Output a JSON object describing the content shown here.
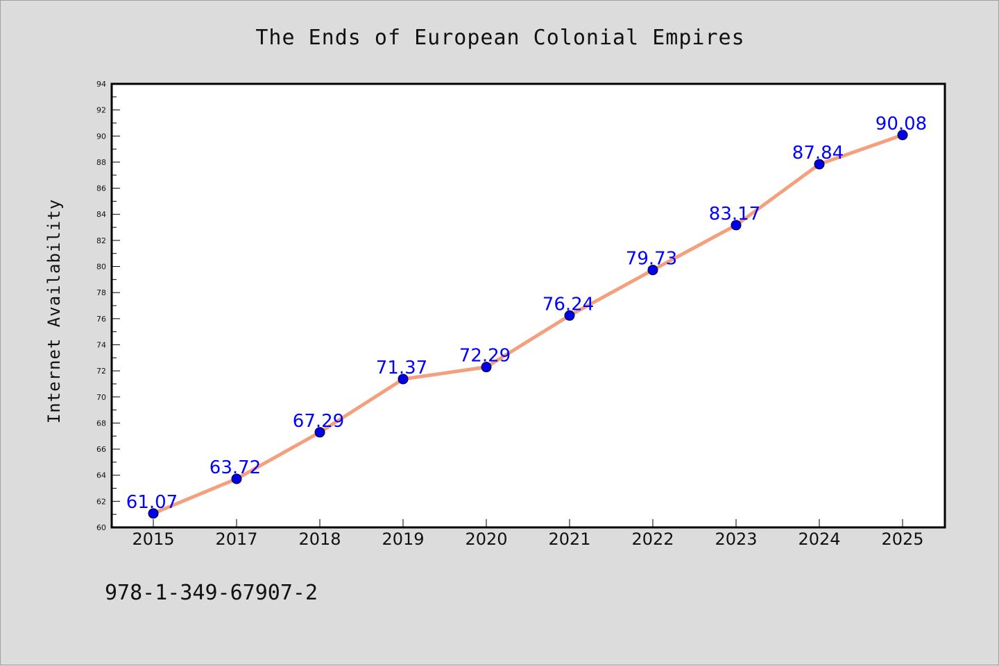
{
  "chart_data": {
    "type": "line",
    "title": "The Ends of European Colonial Empires",
    "xlabel": "",
    "ylabel": "Internet Availability",
    "categories": [
      "2015",
      "2017",
      "2018",
      "2019",
      "2020",
      "2021",
      "2022",
      "2023",
      "2024",
      "2025"
    ],
    "series": [
      {
        "values": [
          61.07,
          63.72,
          67.29,
          71.37,
          72.29,
          76.24,
          79.73,
          83.17,
          87.84,
          90.08
        ],
        "data_labels": [
          "61.07",
          "63.72",
          "67.29",
          "71.37",
          "72.29",
          "76.24",
          "79.73",
          "83.17",
          "87.84",
          "90.08"
        ],
        "line_color": "#f4a07e",
        "marker_color": "#0000ee"
      }
    ],
    "ylim": [
      60,
      94
    ],
    "y_ticks": [
      "60",
      "62",
      "64",
      "66",
      "68",
      "70",
      "72",
      "74",
      "76",
      "78",
      "80",
      "82",
      "84",
      "86",
      "88",
      "90",
      "92",
      "94"
    ],
    "grid": false,
    "legend": "none"
  },
  "footer": {
    "code": "978-1-349-67907-2"
  },
  "colors": {
    "background": "#dcdcdc",
    "plot_background": "#ffffff",
    "data_label": "#0000ff"
  }
}
